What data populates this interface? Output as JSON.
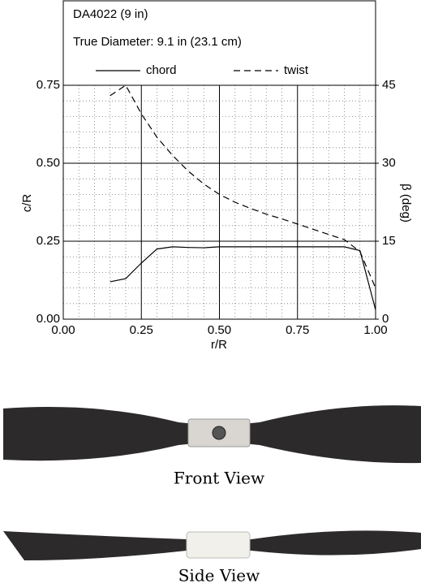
{
  "chart_data": {
    "type": "line",
    "title": "DA4022 (9 in)",
    "subtitle": "True Diameter:  9.1 in (23.1 cm)",
    "x_label": "r/R",
    "y_label": "c/R",
    "y2_label": "β (deg)",
    "x": [
      0.15,
      0.2,
      0.25,
      0.3,
      0.35,
      0.4,
      0.45,
      0.5,
      0.55,
      0.6,
      0.65,
      0.7,
      0.75,
      0.8,
      0.85,
      0.9,
      0.95,
      1.0
    ],
    "series": [
      {
        "name": "chord",
        "color": "#000000",
        "dash": false,
        "values": [
          0.12,
          0.13,
          0.18,
          0.225,
          0.232,
          0.23,
          0.229,
          0.232,
          0.232,
          0.232,
          0.232,
          0.232,
          0.232,
          0.232,
          0.232,
          0.232,
          0.22,
          0.03
        ]
      },
      {
        "name": "twist",
        "color": "#000000",
        "dash": true,
        "axis": "y2",
        "values": [
          43,
          45,
          39.5,
          35,
          31.5,
          28.5,
          26,
          24,
          22.5,
          21.3,
          20.2,
          19.3,
          18.3,
          17.3,
          16.3,
          15.3,
          13,
          6
        ]
      }
    ],
    "xlim": [
      0,
      1
    ],
    "ylim": [
      0,
      0.75
    ],
    "y2lim": [
      0,
      45
    ],
    "xticks": [
      {
        "value": 0,
        "label": "0.00"
      },
      {
        "value": 0.25,
        "label": "0.25"
      },
      {
        "value": 0.5,
        "label": "0.50"
      },
      {
        "value": 0.75,
        "label": "0.75"
      },
      {
        "value": 1,
        "label": "1.00"
      }
    ],
    "yticks": [
      {
        "value": 0,
        "label": "0.00"
      },
      {
        "value": 0.25,
        "label": "0.25"
      },
      {
        "value": 0.5,
        "label": "0.50"
      },
      {
        "value": 0.75,
        "label": "0.75"
      }
    ],
    "y2ticks": [
      0,
      15,
      30,
      45
    ],
    "grid": true,
    "captions": [
      "Front View",
      "Side View"
    ]
  }
}
